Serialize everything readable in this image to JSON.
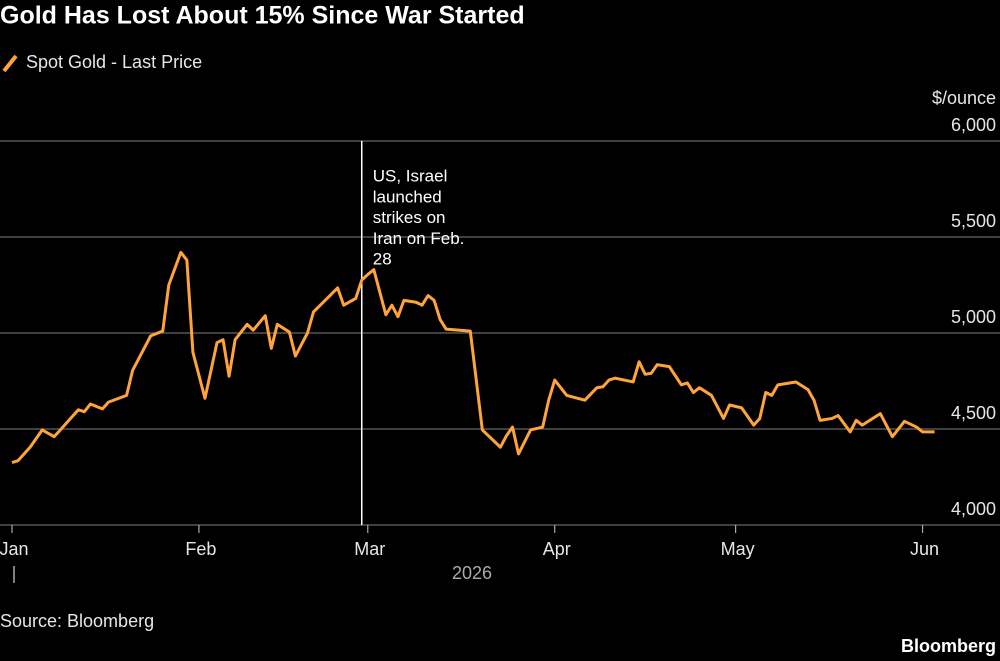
{
  "chart_data": {
    "type": "line",
    "title": "Gold Has Lost About 15% Since War Started",
    "ylabel": "$/ounce",
    "xlabel": "2026",
    "source": "Source: Bloomberg",
    "brand": "Bloomberg",
    "grid": true,
    "legend": "top-left",
    "x": [
      0,
      1,
      3,
      5,
      7,
      8,
      11,
      12,
      13,
      15,
      16,
      19,
      20,
      23,
      25,
      26,
      28,
      29,
      30,
      32,
      34,
      35,
      36,
      37,
      39,
      40,
      42,
      43,
      44,
      46,
      47,
      49,
      50,
      54,
      55,
      57,
      58,
      59,
      60,
      62,
      63,
      64,
      65,
      67,
      68,
      69,
      70,
      71,
      72,
      76,
      78,
      81,
      82,
      83,
      84,
      86,
      88,
      89,
      90,
      92,
      95,
      97,
      98,
      99,
      100,
      103,
      104,
      105,
      106,
      107,
      109,
      111,
      112,
      113,
      114,
      115,
      116,
      118,
      119,
      121,
      123,
      124,
      125,
      126,
      127,
      130,
      132,
      133,
      134,
      136,
      137,
      139,
      140,
      141,
      144,
      145,
      146,
      148,
      150,
      151,
      153
    ],
    "series": [
      {
        "name": "Spot Gold - Last Price",
        "color": "#ffa43a",
        "values": [
          4325,
          4335,
          4405,
          4495,
          4460,
          4495,
          4600,
          4590,
          4630,
          4605,
          4640,
          4675,
          4805,
          4985,
          5010,
          5250,
          5420,
          5380,
          4900,
          4660,
          4950,
          4965,
          4775,
          4965,
          5045,
          5015,
          5090,
          4920,
          5045,
          5005,
          4880,
          5000,
          5110,
          5235,
          5145,
          5180,
          5275,
          5305,
          5330,
          5095,
          5145,
          5085,
          5170,
          5160,
          5145,
          5195,
          5170,
          5070,
          5020,
          5010,
          4495,
          4405,
          4465,
          4510,
          4370,
          4495,
          4510,
          4650,
          4755,
          4675,
          4650,
          4715,
          4720,
          4755,
          4765,
          4745,
          4850,
          4785,
          4790,
          4835,
          4825,
          4730,
          4740,
          4690,
          4715,
          4695,
          4675,
          4555,
          4625,
          4610,
          4520,
          4555,
          4690,
          4675,
          4730,
          4745,
          4705,
          4650,
          4545,
          4555,
          4570,
          4485,
          4545,
          4520,
          4580,
          4520,
          4460,
          4540,
          4510,
          4485,
          4485
        ]
      }
    ],
    "xlim": [
      0,
      153
    ],
    "xticks": [
      {
        "value": 0,
        "label": "Jan"
      },
      {
        "value": 31,
        "label": "Feb"
      },
      {
        "value": 59,
        "label": "Mar"
      },
      {
        "value": 90,
        "label": "Apr"
      },
      {
        "value": 120,
        "label": "May"
      },
      {
        "value": 151,
        "label": "Jun"
      }
    ],
    "ylim": [
      4000,
      6000
    ],
    "yticks": [
      {
        "value": 4000,
        "label": "4,000"
      },
      {
        "value": 4500,
        "label": "4,500"
      },
      {
        "value": 5000,
        "label": "5,000"
      },
      {
        "value": 5500,
        "label": "5,500"
      },
      {
        "value": 6000,
        "label": "6,000"
      }
    ],
    "annotation": {
      "x": 58,
      "lines": [
        "US, Israel",
        "launched",
        "strikes on",
        "Iran on Feb.",
        "28"
      ]
    }
  }
}
